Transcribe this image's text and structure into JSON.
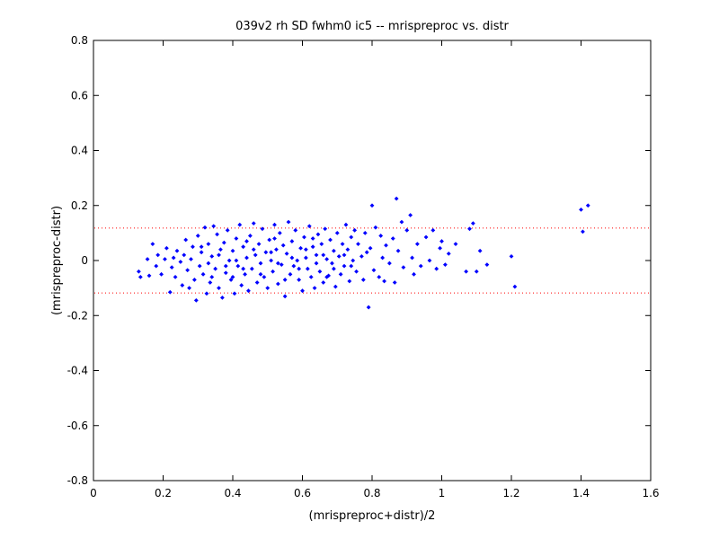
{
  "chart_data": {
    "type": "scatter",
    "title": "039v2 rh SD fwhm0 ic5 -- mrispreproc vs. distr",
    "xlabel": "(mrispreproc+distr)/2",
    "ylabel": "(mrispreproc-distr)",
    "xlim": [
      0,
      1.6
    ],
    "ylim": [
      -0.8,
      0.8
    ],
    "xticks": [
      0,
      0.2,
      0.4,
      0.6,
      0.8,
      1,
      1.2,
      1.4,
      1.6
    ],
    "xtick_labels": [
      "0",
      "0.2",
      "0.4",
      "0.6",
      "0.8",
      "1",
      "1.2",
      "1.4",
      "1.6"
    ],
    "yticks": [
      -0.8,
      -0.6,
      -0.4,
      -0.2,
      0,
      0.2,
      0.4,
      0.6,
      0.8
    ],
    "ytick_labels": [
      "-0.8",
      "-0.6",
      "-0.4",
      "-0.2",
      "0",
      "0.2",
      "0.4",
      "0.6",
      "0.8"
    ],
    "grid": false,
    "reference_lines": [
      {
        "y": 0.118,
        "style": "dotted",
        "color": "#ff0000"
      },
      {
        "y": -0.118,
        "style": "dotted",
        "color": "#ff0000"
      }
    ],
    "marker_color": "#0000ff",
    "series": [
      {
        "points": [
          [
            0.13,
            -0.04
          ],
          [
            0.135,
            -0.06
          ],
          [
            0.155,
            0.005
          ],
          [
            0.16,
            -0.055
          ],
          [
            0.17,
            0.06
          ],
          [
            0.18,
            -0.02
          ],
          [
            0.185,
            0.02
          ],
          [
            0.195,
            -0.05
          ],
          [
            0.205,
            0.005
          ],
          [
            0.21,
            0.045
          ],
          [
            0.22,
            -0.115
          ],
          [
            0.225,
            -0.025
          ],
          [
            0.23,
            0.01
          ],
          [
            0.235,
            -0.06
          ],
          [
            0.24,
            0.035
          ],
          [
            0.25,
            -0.005
          ],
          [
            0.255,
            -0.09
          ],
          [
            0.26,
            0.02
          ],
          [
            0.265,
            0.075
          ],
          [
            0.27,
            -0.035
          ],
          [
            0.275,
            -0.1
          ],
          [
            0.28,
            0.005
          ],
          [
            0.285,
            0.05
          ],
          [
            0.29,
            -0.07
          ],
          [
            0.295,
            -0.145
          ],
          [
            0.3,
            0.09
          ],
          [
            0.305,
            -0.02
          ],
          [
            0.31,
            0.03
          ],
          [
            0.315,
            -0.05
          ],
          [
            0.32,
            0.12
          ],
          [
            0.325,
            -0.12
          ],
          [
            0.33,
            0.06
          ],
          [
            0.335,
            -0.08
          ],
          [
            0.34,
            0.015
          ],
          [
            0.345,
            0.125
          ],
          [
            0.35,
            -0.03
          ],
          [
            0.355,
            0.095
          ],
          [
            0.36,
            -0.1
          ],
          [
            0.365,
            0.04
          ],
          [
            0.37,
            -0.135
          ],
          [
            0.375,
            0.065
          ],
          [
            0.38,
            -0.045
          ],
          [
            0.385,
            0.11
          ],
          [
            0.39,
            0.0
          ],
          [
            0.395,
            -0.07
          ],
          [
            0.4,
            0.035
          ],
          [
            0.405,
            -0.12
          ],
          [
            0.41,
            0.08
          ],
          [
            0.415,
            -0.02
          ],
          [
            0.42,
            0.13
          ],
          [
            0.425,
            -0.09
          ],
          [
            0.43,
            0.05
          ],
          [
            0.435,
            -0.05
          ],
          [
            0.44,
            0.01
          ],
          [
            0.445,
            -0.11
          ],
          [
            0.45,
            0.09
          ],
          [
            0.455,
            -0.03
          ],
          [
            0.46,
            0.135
          ],
          [
            0.465,
            0.02
          ],
          [
            0.47,
            -0.08
          ],
          [
            0.475,
            0.06
          ],
          [
            0.48,
            -0.01
          ],
          [
            0.485,
            0.115
          ],
          [
            0.49,
            -0.06
          ],
          [
            0.495,
            0.03
          ],
          [
            0.5,
            -0.1
          ],
          [
            0.505,
            0.075
          ],
          [
            0.51,
            0.0
          ],
          [
            0.515,
            -0.04
          ],
          [
            0.52,
            0.13
          ],
          [
            0.525,
            0.04
          ],
          [
            0.53,
            -0.085
          ],
          [
            0.535,
            0.1
          ],
          [
            0.54,
            -0.015
          ],
          [
            0.545,
            0.055
          ],
          [
            0.55,
            -0.13
          ],
          [
            0.555,
            0.025
          ],
          [
            0.56,
            0.14
          ],
          [
            0.565,
            -0.05
          ],
          [
            0.57,
            0.07
          ],
          [
            0.575,
            -0.02
          ],
          [
            0.58,
            0.11
          ],
          [
            0.585,
            0.0
          ],
          [
            0.59,
            -0.07
          ],
          [
            0.595,
            0.045
          ],
          [
            0.6,
            -0.11
          ],
          [
            0.605,
            0.085
          ],
          [
            0.61,
            0.01
          ],
          [
            0.615,
            -0.03
          ],
          [
            0.62,
            0.125
          ],
          [
            0.625,
            -0.06
          ],
          [
            0.63,
            0.05
          ],
          [
            0.635,
            -0.1
          ],
          [
            0.64,
            0.02
          ],
          [
            0.645,
            0.095
          ],
          [
            0.65,
            -0.04
          ],
          [
            0.655,
            0.06
          ],
          [
            0.66,
            -0.08
          ],
          [
            0.665,
            0.115
          ],
          [
            0.67,
            0.005
          ],
          [
            0.675,
            -0.055
          ],
          [
            0.68,
            0.075
          ],
          [
            0.685,
            -0.01
          ],
          [
            0.69,
            0.035
          ],
          [
            0.695,
            -0.095
          ],
          [
            0.7,
            0.1
          ],
          [
            0.705,
            0.015
          ],
          [
            0.71,
            -0.05
          ],
          [
            0.715,
            0.06
          ],
          [
            0.72,
            -0.02
          ],
          [
            0.725,
            0.13
          ],
          [
            0.73,
            0.04
          ],
          [
            0.735,
            -0.075
          ],
          [
            0.74,
            0.085
          ],
          [
            0.745,
            0.0
          ],
          [
            0.75,
            0.11
          ],
          [
            0.755,
            -0.04
          ],
          [
            0.76,
            0.06
          ],
          [
            0.77,
            0.015
          ],
          [
            0.775,
            -0.07
          ],
          [
            0.78,
            0.1
          ],
          [
            0.785,
            0.03
          ],
          [
            0.79,
            -0.17
          ],
          [
            0.795,
            0.045
          ],
          [
            0.8,
            0.2
          ],
          [
            0.805,
            -0.035
          ],
          [
            0.81,
            0.12
          ],
          [
            0.82,
            -0.06
          ],
          [
            0.825,
            0.09
          ],
          [
            0.83,
            0.01
          ],
          [
            0.835,
            -0.075
          ],
          [
            0.84,
            0.055
          ],
          [
            0.85,
            -0.01
          ],
          [
            0.86,
            0.08
          ],
          [
            0.865,
            -0.08
          ],
          [
            0.87,
            0.225
          ],
          [
            0.875,
            0.035
          ],
          [
            0.885,
            0.14
          ],
          [
            0.89,
            -0.025
          ],
          [
            0.9,
            0.11
          ],
          [
            0.91,
            0.165
          ],
          [
            0.915,
            0.01
          ],
          [
            0.92,
            -0.05
          ],
          [
            0.93,
            0.06
          ],
          [
            0.94,
            -0.02
          ],
          [
            0.955,
            0.085
          ],
          [
            0.965,
            0.0
          ],
          [
            0.975,
            0.11
          ],
          [
            0.985,
            -0.03
          ],
          [
            0.995,
            0.045
          ],
          [
            1.0,
            0.07
          ],
          [
            1.01,
            -0.015
          ],
          [
            1.02,
            0.025
          ],
          [
            1.04,
            0.06
          ],
          [
            1.07,
            -0.04
          ],
          [
            1.08,
            0.115
          ],
          [
            1.09,
            0.135
          ],
          [
            1.1,
            -0.04
          ],
          [
            1.11,
            0.035
          ],
          [
            1.13,
            -0.015
          ],
          [
            1.2,
            0.015
          ],
          [
            1.21,
            -0.095
          ],
          [
            1.4,
            0.185
          ],
          [
            1.405,
            0.105
          ],
          [
            1.42,
            0.2
          ],
          [
            0.33,
            -0.01
          ],
          [
            0.36,
            0.02
          ],
          [
            0.38,
            -0.02
          ],
          [
            0.41,
            0.0
          ],
          [
            0.43,
            -0.03
          ],
          [
            0.46,
            0.04
          ],
          [
            0.48,
            -0.05
          ],
          [
            0.51,
            0.03
          ],
          [
            0.53,
            -0.01
          ],
          [
            0.57,
            0.01
          ],
          [
            0.59,
            -0.03
          ],
          [
            0.61,
            0.04
          ],
          [
            0.64,
            -0.01
          ],
          [
            0.66,
            0.02
          ],
          [
            0.69,
            -0.03
          ],
          [
            0.72,
            0.02
          ],
          [
            0.74,
            -0.02
          ],
          [
            0.4,
            -0.06
          ],
          [
            0.44,
            0.07
          ],
          [
            0.52,
            0.08
          ],
          [
            0.55,
            -0.07
          ],
          [
            0.63,
            0.08
          ],
          [
            0.67,
            -0.06
          ],
          [
            0.31,
            0.05
          ],
          [
            0.34,
            -0.06
          ]
        ]
      }
    ]
  }
}
